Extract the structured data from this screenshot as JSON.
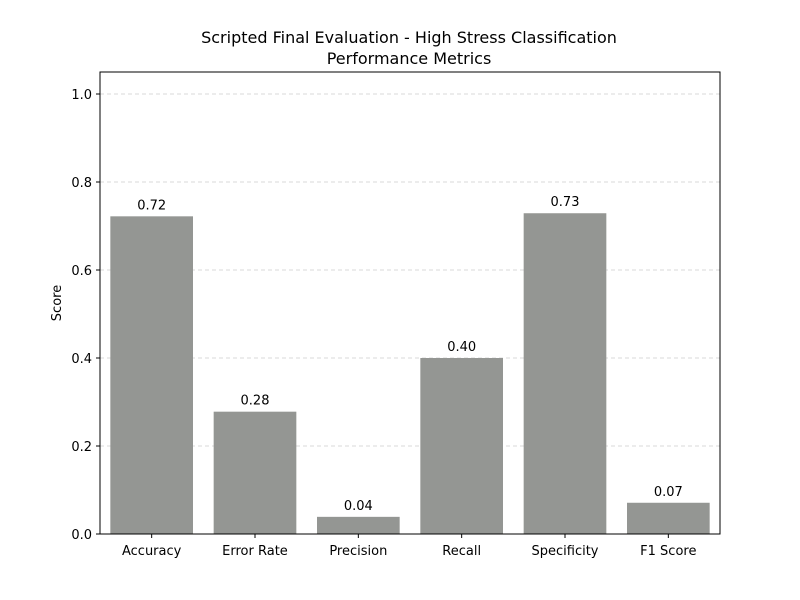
{
  "chart_data": {
    "type": "bar",
    "title_line1": "Scripted Final Evaluation - High Stress Classification",
    "title_line2": "Performance Metrics",
    "xlabel": "",
    "ylabel": "Score",
    "categories": [
      "Accuracy",
      "Error Rate",
      "Precision",
      "Recall",
      "Specificity",
      "F1 Score"
    ],
    "values": [
      0.722,
      0.278,
      0.039,
      0.4,
      0.729,
      0.071
    ],
    "value_labels": [
      "0.72",
      "0.28",
      "0.04",
      "0.40",
      "0.73",
      "0.07"
    ],
    "ylim": [
      0,
      1.05
    ],
    "yticks": [
      0.0,
      0.2,
      0.4,
      0.6,
      0.8,
      1.0
    ],
    "ytick_labels": [
      "0.0",
      "0.2",
      "0.4",
      "0.6",
      "0.8",
      "1.0"
    ],
    "grid": "y-dashed",
    "bar_color": "#949693",
    "grid_color": "#cccccc"
  }
}
